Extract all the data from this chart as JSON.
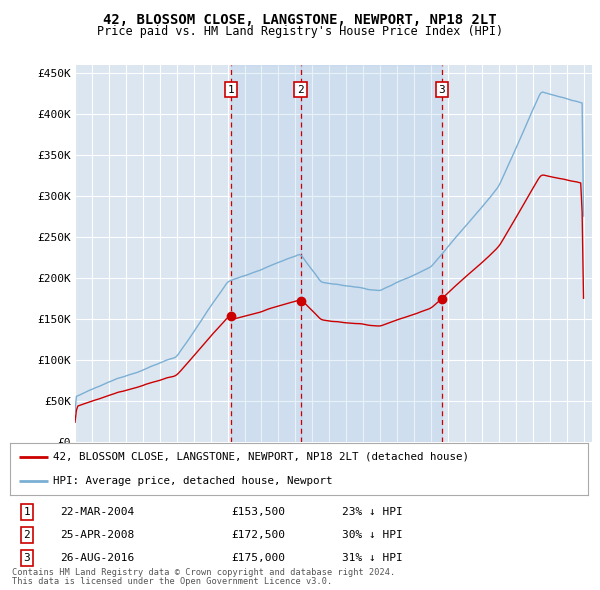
{
  "title": "42, BLOSSOM CLOSE, LANGSTONE, NEWPORT, NP18 2LT",
  "subtitle": "Price paid vs. HM Land Registry's House Price Index (HPI)",
  "ylabel_ticks": [
    0,
    50000,
    100000,
    150000,
    200000,
    250000,
    300000,
    350000,
    400000,
    450000
  ],
  "ylim": [
    0,
    460000
  ],
  "xlim_start": 1995.0,
  "xlim_end": 2025.5,
  "sale_dates": [
    2004.22,
    2008.31,
    2016.65
  ],
  "sale_prices": [
    153500,
    172500,
    175000
  ],
  "sale_labels": [
    "1",
    "2",
    "3"
  ],
  "sale_info": [
    {
      "label": "1",
      "date": "22-MAR-2004",
      "price": "£153,500",
      "hpi": "23% ↓ HPI"
    },
    {
      "label": "2",
      "date": "25-APR-2008",
      "price": "£172,500",
      "hpi": "30% ↓ HPI"
    },
    {
      "label": "3",
      "date": "26-AUG-2016",
      "price": "£175,000",
      "hpi": "31% ↓ HPI"
    }
  ],
  "legend_line1": "42, BLOSSOM CLOSE, LANGSTONE, NEWPORT, NP18 2LT (detached house)",
  "legend_line2": "HPI: Average price, detached house, Newport",
  "footer1": "Contains HM Land Registry data © Crown copyright and database right 2024.",
  "footer2": "This data is licensed under the Open Government Licence v3.0.",
  "hpi_color": "#7bafd4",
  "price_color": "#cc0000",
  "background_color": "#dce6f1",
  "shade_color": "#c5d8ee",
  "grid_color": "#ffffff",
  "vline_color": "#cc0000",
  "marker_box_color": "#cc0000",
  "fig_width": 6.0,
  "fig_height": 5.9,
  "dpi": 100
}
